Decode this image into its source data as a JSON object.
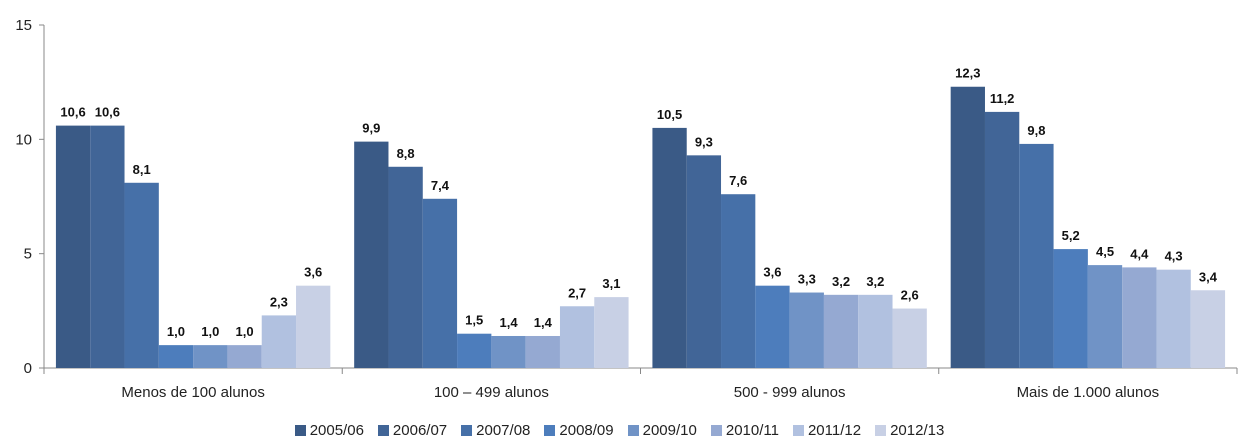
{
  "chart_data": {
    "type": "bar",
    "categories": [
      "Menos de 100 alunos",
      "100 – 499 alunos",
      "500 - 999 alunos",
      "Mais de 1.000 alunos"
    ],
    "series": [
      {
        "name": "2005/06",
        "values": [
          10.6,
          9.9,
          10.5,
          12.3
        ],
        "labels": [
          "10,6",
          "9,9",
          "10,5",
          "12,3"
        ],
        "color": "#3a5a86"
      },
      {
        "name": "2006/07",
        "values": [
          10.6,
          8.8,
          9.3,
          11.2
        ],
        "labels": [
          "10,6",
          "8,8",
          "9,3",
          "11,2"
        ],
        "color": "#416597"
      },
      {
        "name": "2007/08",
        "values": [
          8.1,
          7.4,
          7.6,
          9.8
        ],
        "labels": [
          "8,1",
          "7,4",
          "7,6",
          "9,8"
        ],
        "color": "#4670a8"
      },
      {
        "name": "2008/09",
        "values": [
          1.0,
          1.5,
          3.6,
          5.2
        ],
        "labels": [
          "1,0",
          "1,5",
          "3,6",
          "5,2"
        ],
        "color": "#4d7dbc"
      },
      {
        "name": "2009/10",
        "values": [
          1.0,
          1.4,
          3.3,
          4.5
        ],
        "labels": [
          "1,0",
          "1,4",
          "3,3",
          "4,5"
        ],
        "color": "#7093c6"
      },
      {
        "name": "2010/11",
        "values": [
          1.0,
          1.4,
          3.2,
          4.4
        ],
        "labels": [
          "1,0",
          "1,4",
          "3,2",
          "4,4"
        ],
        "color": "#95a9d2"
      },
      {
        "name": "2011/12",
        "values": [
          2.3,
          2.7,
          3.2,
          4.3
        ],
        "labels": [
          "2,3",
          "2,7",
          "3,2",
          "4,3"
        ],
        "color": "#b1c1e0"
      },
      {
        "name": "2012/13",
        "values": [
          3.6,
          3.1,
          2.6,
          3.4
        ],
        "labels": [
          "3,6",
          "3,1",
          "2,6",
          "3,4"
        ],
        "color": "#c8d0e5"
      }
    ],
    "ylim": [
      0,
      15
    ],
    "yticks": [
      "0",
      "5",
      "10",
      "15"
    ],
    "xlabel": "",
    "ylabel": "",
    "title": "",
    "grid": false,
    "legend_position": "bottom"
  }
}
